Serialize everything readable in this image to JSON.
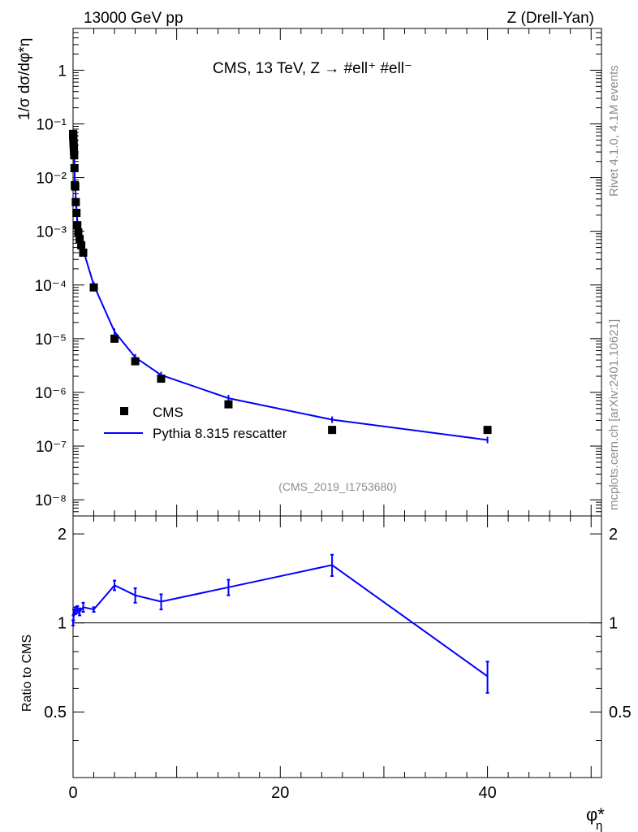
{
  "header": {
    "left": "13000 GeV pp",
    "right": "Z (Drell-Yan)"
  },
  "side_labels": {
    "rivet": "Rivet 4.1.0,  4.1M events",
    "mcplots": "mcplots.cern.ch [arXiv:2401.10621]"
  },
  "chart_data": {
    "type": "scatter",
    "title": "CMS, 13 TeV, Z →  #ell⁺ #ell⁻",
    "analysis_tag": "(CMS_2019_I1753680)",
    "xlabel": "φ*",
    "xlabel_sub": "η",
    "ylabel_main": "1/σ dσ/dφ*η",
    "ylabel_ratio": "Ratio to CMS",
    "xlim": [
      0,
      51
    ],
    "main_ylim": [
      5e-09,
      6
    ],
    "main_yscale": "log",
    "ratio_ylim": [
      0.3,
      2.3
    ],
    "x_ticks": [
      "0",
      "20",
      "40"
    ],
    "main_y_ticks": [
      "10⁻⁸",
      "10⁻⁷",
      "10⁻⁶",
      "10⁻⁵",
      "10⁻⁴",
      "10⁻³",
      "10⁻²",
      "10⁻¹",
      "1"
    ],
    "ratio_y_ticks": [
      "0.5",
      "1",
      "2"
    ],
    "legend_position": "lower-left",
    "series": [
      {
        "name": "CMS",
        "style": "markers",
        "color": "#000000",
        "x": [
          0.004,
          0.012,
          0.02,
          0.028,
          0.036,
          0.045,
          0.057,
          0.072,
          0.089,
          0.11,
          0.138,
          0.171,
          0.213,
          0.265,
          0.33,
          0.41,
          0.51,
          0.635,
          0.79,
          0.98,
          2.0,
          4.0,
          6.0,
          8.5,
          15.0,
          25.0,
          40.0
        ],
        "y": [
          0.065,
          0.062,
          0.058,
          0.054,
          0.05,
          0.046,
          0.041,
          0.036,
          0.031,
          0.026,
          0.015,
          0.0072,
          0.0068,
          0.0035,
          0.0022,
          0.0013,
          0.00095,
          0.00072,
          0.00055,
          0.0004,
          9e-05,
          1e-05,
          3.8e-06,
          1.8e-06,
          6e-07,
          2e-07,
          2e-07
        ]
      },
      {
        "name": "Pythia 8.315 rescatter",
        "style": "line",
        "color": "#0000ff",
        "x": [
          0.004,
          0.012,
          0.02,
          0.028,
          0.036,
          0.045,
          0.057,
          0.072,
          0.089,
          0.11,
          0.138,
          0.171,
          0.213,
          0.265,
          0.33,
          0.41,
          0.51,
          0.635,
          0.79,
          0.98,
          2.0,
          4.0,
          6.0,
          8.5,
          15.0,
          25.0,
          40.0
        ],
        "y": [
          0.064,
          0.062,
          0.059,
          0.056,
          0.052,
          0.049,
          0.044,
          0.039,
          0.034,
          0.029,
          0.016,
          0.0078,
          0.0075,
          0.0039,
          0.0025,
          0.0015,
          0.0011,
          0.00082,
          0.00063,
          0.00045,
          0.0001,
          1.35e-05,
          4.5e-06,
          2.1e-06,
          7.8e-07,
          3.1e-07,
          1.3e-07
        ]
      }
    ],
    "ratio_series": {
      "name": "Pythia 8.315 rescatter / CMS",
      "x": [
        0.004,
        0.036,
        0.089,
        0.213,
        0.41,
        0.635,
        0.98,
        2.0,
        4.0,
        6.0,
        8.5,
        15.0,
        25.0,
        40.0
      ],
      "y": [
        1.0,
        1.04,
        1.09,
        1.1,
        1.11,
        1.09,
        1.13,
        1.11,
        1.34,
        1.24,
        1.18,
        1.32,
        1.57,
        0.66
      ],
      "err": [
        0.02,
        0.02,
        0.02,
        0.03,
        0.03,
        0.03,
        0.04,
        0.02,
        0.05,
        0.07,
        0.07,
        0.08,
        0.13,
        0.08
      ]
    }
  }
}
